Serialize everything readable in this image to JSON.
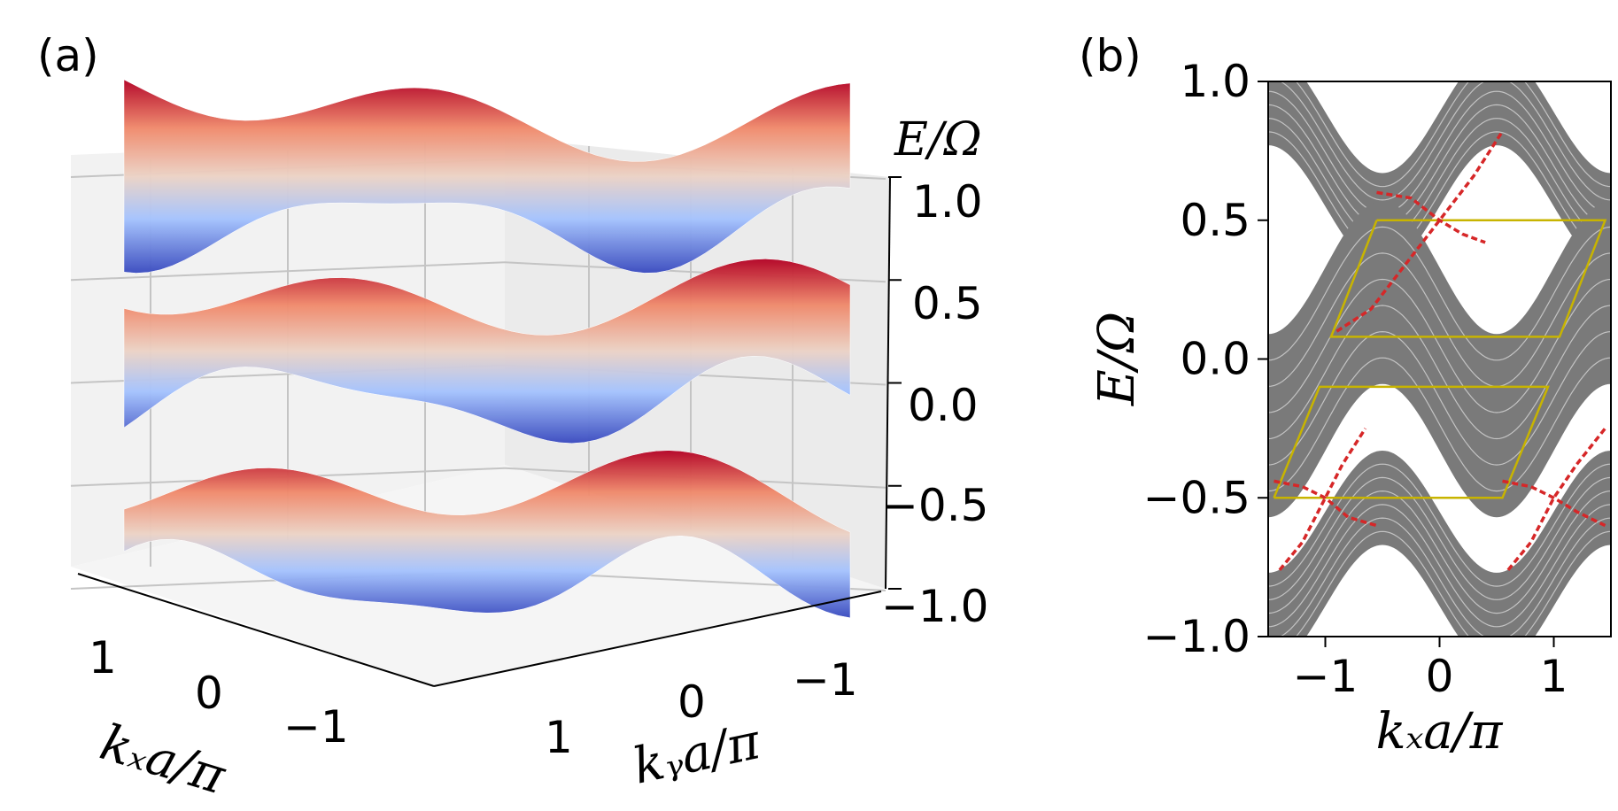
{
  "panels": {
    "a": "(a)",
    "b": "(b)"
  },
  "chart_data": [
    {
      "id": "a",
      "type": "surface3d",
      "colormap": "coolwarm",
      "z_label": "E/Ω",
      "x_label": "kₓa/π",
      "y_label": "kᵧa/π",
      "z_ticks": [
        "1.0",
        "0.5",
        "0.0",
        "−0.5",
        "−1.0"
      ],
      "x_ticks": [
        "1",
        "0",
        "−1"
      ],
      "y_ticks": [
        "1",
        "0",
        "−1"
      ],
      "zlim": [
        -1.0,
        1.0
      ],
      "xlim": [
        -1.5,
        1.5
      ],
      "ylim": [
        -1.5,
        1.5
      ],
      "series": [
        {
          "name": "band-upper",
          "z_range": [
            0.55,
            1.05
          ]
        },
        {
          "name": "band-middle",
          "z_range": [
            -0.3,
            0.3
          ]
        },
        {
          "name": "band-lower",
          "z_range": [
            -1.05,
            -0.55
          ]
        }
      ]
    },
    {
      "id": "b",
      "type": "line",
      "xlabel": "kₓa/π",
      "ylabel": "E/Ω",
      "xlim": [
        -1.5,
        1.5
      ],
      "ylim": [
        -1.0,
        1.0
      ],
      "x_ticks": [
        {
          "value": -1,
          "label": "−1"
        },
        {
          "value": 0,
          "label": "0"
        },
        {
          "value": 1,
          "label": "1"
        }
      ],
      "y_ticks": [
        {
          "value": 1.0,
          "label": "1.0"
        },
        {
          "value": 0.5,
          "label": "0.5"
        },
        {
          "value": 0.0,
          "label": "0.0"
        },
        {
          "value": -0.5,
          "label": "−0.5"
        },
        {
          "value": -1.0,
          "label": "−1.0"
        }
      ],
      "bulk_color": "#7a7a7a",
      "edge_color": "#d62728",
      "frame_color": "#c8b400",
      "bulk_bands": [
        {
          "name": "bulk-upper",
          "center": 0.72,
          "amplitude": 0.22,
          "width": 0.34
        },
        {
          "name": "bulk-middle",
          "center": 0.0,
          "amplitude": 0.24,
          "width": 0.66
        },
        {
          "name": "bulk-lower",
          "center": -0.72,
          "amplitude": 0.22,
          "width": 0.34
        }
      ],
      "edge_states": [
        {
          "name": "edge-up-a",
          "x": [
            -0.55,
            -0.25,
            0.0,
            0.2,
            0.4
          ],
          "y": [
            0.6,
            0.58,
            0.5,
            0.45,
            0.42
          ]
        },
        {
          "name": "edge-up-b",
          "x": [
            -0.9,
            -0.6,
            -0.3,
            0.0,
            0.3,
            0.55
          ],
          "y": [
            0.1,
            0.18,
            0.34,
            0.5,
            0.66,
            0.82
          ]
        },
        {
          "name": "edge-lo-left-a",
          "x": [
            -1.45,
            -1.2,
            -1.0,
            -0.8,
            -0.55
          ],
          "y": [
            -0.44,
            -0.46,
            -0.5,
            -0.57,
            -0.6
          ]
        },
        {
          "name": "edge-lo-left-b",
          "x": [
            -1.4,
            -1.2,
            -1.0,
            -0.85,
            -0.65
          ],
          "y": [
            -0.76,
            -0.66,
            -0.5,
            -0.38,
            -0.25
          ]
        },
        {
          "name": "edge-lo-right-a",
          "x": [
            0.55,
            0.8,
            1.0,
            1.2,
            1.45
          ],
          "y": [
            -0.44,
            -0.46,
            -0.5,
            -0.55,
            -0.6
          ]
        },
        {
          "name": "edge-lo-right-b",
          "x": [
            0.6,
            0.8,
            1.0,
            1.2,
            1.45
          ],
          "y": [
            -0.76,
            -0.66,
            -0.5,
            -0.38,
            -0.25
          ]
        }
      ],
      "frames": [
        {
          "name": "frame-upper",
          "x": [
            -0.55,
            1.45,
            1.05,
            -0.95,
            -0.55
          ],
          "y": [
            0.5,
            0.5,
            0.08,
            0.08,
            0.5
          ]
        },
        {
          "name": "frame-lower",
          "x": [
            -1.45,
            0.55,
            0.95,
            -1.05,
            -1.45
          ],
          "y": [
            -0.5,
            -0.5,
            -0.1,
            -0.1,
            -0.5
          ]
        }
      ]
    }
  ]
}
